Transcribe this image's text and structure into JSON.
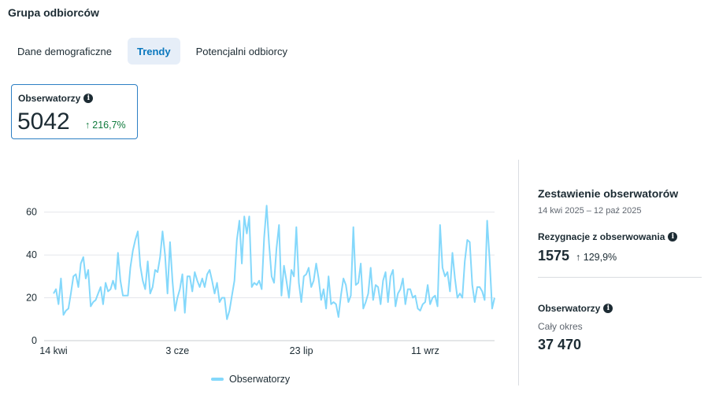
{
  "section_title": "Grupa odbiorców",
  "tabs": [
    {
      "label": "Dane demograficzne",
      "active": false
    },
    {
      "label": "Trendy",
      "active": true
    },
    {
      "label": "Potencjalni odbiorcy",
      "active": false
    }
  ],
  "metric_card": {
    "label": "Obserwatorzy",
    "value": "5042",
    "delta": "216,7%"
  },
  "summary": {
    "title": "Zestawienie obserwatorów",
    "date_range": "14 kwi 2025 – 12 paź 2025",
    "unfollows": {
      "label": "Rezygnacje z obserwowania",
      "value": "1575",
      "delta": "129,9%"
    },
    "followers": {
      "label": "Obserwatorzy",
      "period": "Cały okres",
      "value": "37 470"
    }
  },
  "chart_data": {
    "type": "line",
    "title": "",
    "xlabel": "",
    "ylabel": "",
    "ylim": [
      0,
      65
    ],
    "yticks": [
      0,
      20,
      40,
      60
    ],
    "ytick_labels": [
      "0",
      "20",
      "40",
      "60"
    ],
    "x_ticks": [
      {
        "index": 0,
        "label": "14 kwi"
      },
      {
        "index": 50,
        "label": "3 cze"
      },
      {
        "index": 100,
        "label": "23 lip"
      },
      {
        "index": 150,
        "label": "11 wrz"
      }
    ],
    "grid": true,
    "legend": "bottom",
    "color": "#84d8fb",
    "series": [
      {
        "name": "Obserwatorzy",
        "values": [
          22,
          24,
          17,
          29,
          12,
          14,
          15,
          22,
          30,
          31,
          25,
          36,
          39,
          29,
          33,
          16,
          18,
          19,
          22,
          25,
          17,
          27,
          23,
          24,
          28,
          24,
          41,
          28,
          21,
          21,
          21,
          34,
          42,
          47,
          51,
          35,
          28,
          24,
          37,
          22,
          25,
          33,
          32,
          39,
          51,
          40,
          22,
          46,
          28,
          14,
          20,
          24,
          31,
          13,
          30,
          30,
          23,
          32,
          28,
          25,
          29,
          25,
          31,
          33,
          28,
          22,
          27,
          18,
          20,
          20,
          10,
          14,
          21,
          28,
          47,
          56,
          36,
          58,
          50,
          58,
          25,
          27,
          26,
          28,
          24,
          48,
          63,
          45,
          30,
          27,
          43,
          54,
          21,
          35,
          28,
          20,
          33,
          30,
          53,
          27,
          18,
          30,
          31,
          34,
          25,
          28,
          36,
          29,
          19,
          24,
          15,
          30,
          17,
          18,
          17,
          11,
          21,
          29,
          26,
          18,
          21,
          53,
          26,
          27,
          36,
          15,
          18,
          22,
          34,
          19,
          26,
          25,
          17,
          28,
          32,
          18,
          30,
          33,
          16,
          22,
          24,
          29,
          17,
          24,
          24,
          20,
          21,
          15,
          14,
          17,
          18,
          26,
          17,
          20,
          21,
          16,
          54,
          34,
          30,
          32,
          23,
          41,
          29,
          20,
          22,
          20,
          37,
          47,
          46,
          26,
          18,
          25,
          25,
          23,
          19,
          56,
          38,
          15,
          20
        ]
      }
    ]
  }
}
